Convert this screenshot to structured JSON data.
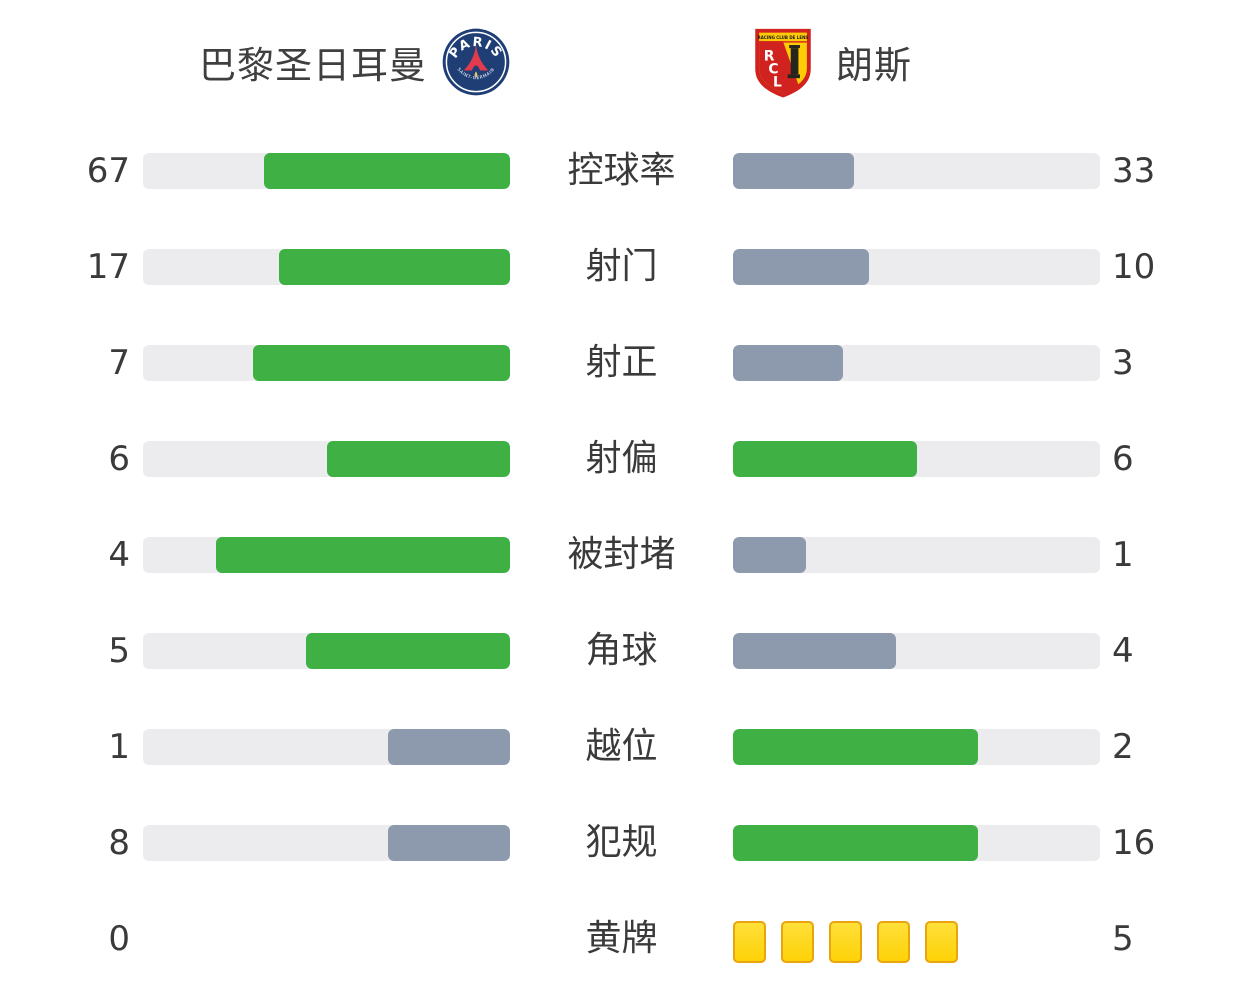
{
  "teams": {
    "home": {
      "name": "巴黎圣日耳曼",
      "crest": {
        "top_text": "PARIS",
        "bottom_text": "SAINT-GERMAIN"
      }
    },
    "away": {
      "name": "朗斯",
      "crest": {
        "band_text": "RACING CLUB DE LENS",
        "initials": [
          "R",
          "C",
          "L"
        ]
      }
    }
  },
  "colors": {
    "green": "#3eb044",
    "gray_blue": "#8d9aad",
    "track": "#ececee",
    "text": "#3a3a3a",
    "card_top": "#ffdf3a",
    "card_bottom": "#fed206",
    "card_border": "#e9a40e",
    "psg_navy": "#1f3e75",
    "psg_red": "#e23b4e",
    "rcl_red": "#d0231f",
    "rcl_yellow": "#ffcb05"
  },
  "chart_data": {
    "type": "bar",
    "orientation": "horizontal-paired",
    "title": "",
    "categories": [
      "控球率",
      "射门",
      "射正",
      "射偏",
      "被封堵",
      "角球",
      "越位",
      "犯规",
      "黄牌"
    ],
    "series": [
      {
        "name": "巴黎圣日耳曼",
        "values": [
          67,
          17,
          7,
          6,
          4,
          5,
          1,
          8,
          0
        ]
      },
      {
        "name": "朗斯",
        "values": [
          33,
          10,
          3,
          6,
          1,
          4,
          2,
          16,
          5
        ]
      }
    ],
    "value_scale": "fill width = value / (home + away) of each row",
    "highlight_rule": "higher value bar is green, lower is gray-blue, ties both green; home bars right-anchored, away bars left-anchored",
    "grid": false,
    "legend_position": "team headers on top"
  },
  "cards_rows": [
    8
  ]
}
